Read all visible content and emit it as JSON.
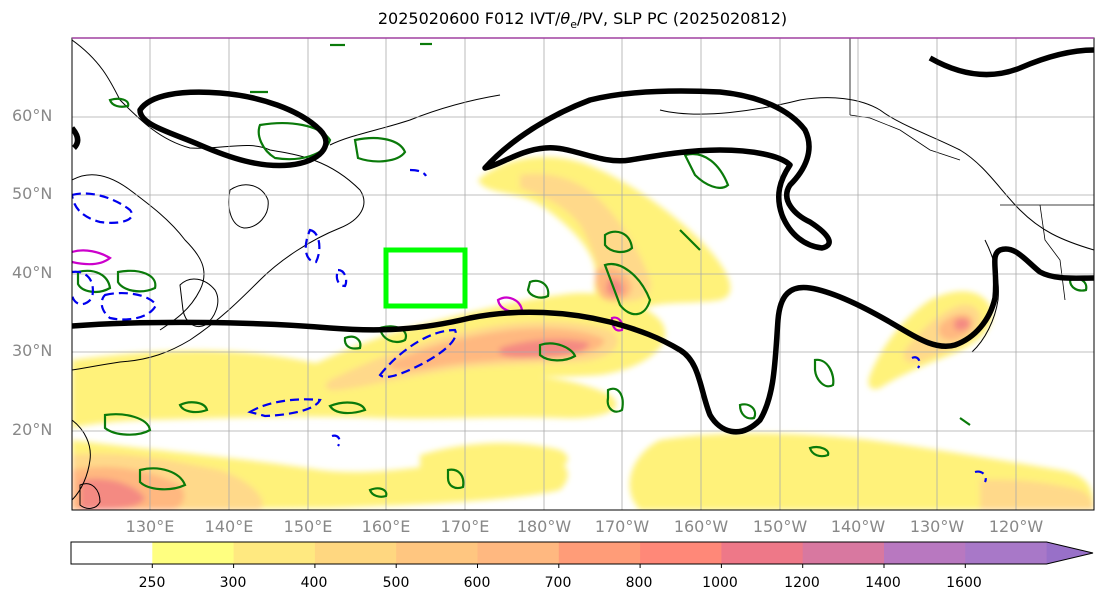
{
  "title": {
    "text": "2025020600 F012 IVT/θe/PV, SLP PC (2025020812)"
  },
  "map": {
    "projection": "PlateCarree",
    "lon_range": [
      120,
      250
    ],
    "lat_range": [
      10,
      70
    ],
    "lat_labels": [
      "60°N",
      "50°N",
      "40°N",
      "30°N",
      "20°N"
    ],
    "lon_labels": [
      "130°E",
      "140°E",
      "150°E",
      "160°E",
      "170°E",
      "180°W",
      "170°W",
      "160°W",
      "150°W",
      "140°W",
      "130°W",
      "120°W"
    ],
    "region_box": {
      "lon": [
        160,
        170
      ],
      "lat": [
        36,
        43
      ],
      "color": "#00ff00"
    },
    "slp_contour_color": "#000000",
    "theta_e_color": "#008000",
    "pv_color": "#0000ff",
    "pv_secondary_color": "#cc00cc"
  },
  "colorbar": {
    "ticks": [
      "250",
      "300",
      "400",
      "500",
      "600",
      "700",
      "800",
      "1000",
      "1200",
      "1400",
      "1600"
    ],
    "colors": [
      "#ffffff",
      "#ffff80",
      "#ffe980",
      "#ffd780",
      "#ffc680",
      "#ffb880",
      "#ff9c78",
      "#ff8878",
      "#ee7888",
      "#d878a0",
      "#b878c0",
      "#a878c8",
      "#9870c8"
    ],
    "extend": "max"
  },
  "chart_data": {
    "type": "heatmap",
    "variable": "IVT",
    "levels": [
      250,
      300,
      400,
      500,
      600,
      700,
      800,
      1000,
      1200,
      1400,
      1600
    ],
    "maxima": [
      {
        "lon": 123,
        "lat": 13,
        "value": 800
      },
      {
        "lon": 181,
        "lat": 31,
        "value": 700
      },
      {
        "lon": 190,
        "lat": 37,
        "value": 700
      },
      {
        "lon": 233,
        "lat": 34,
        "value": 800
      }
    ]
  }
}
